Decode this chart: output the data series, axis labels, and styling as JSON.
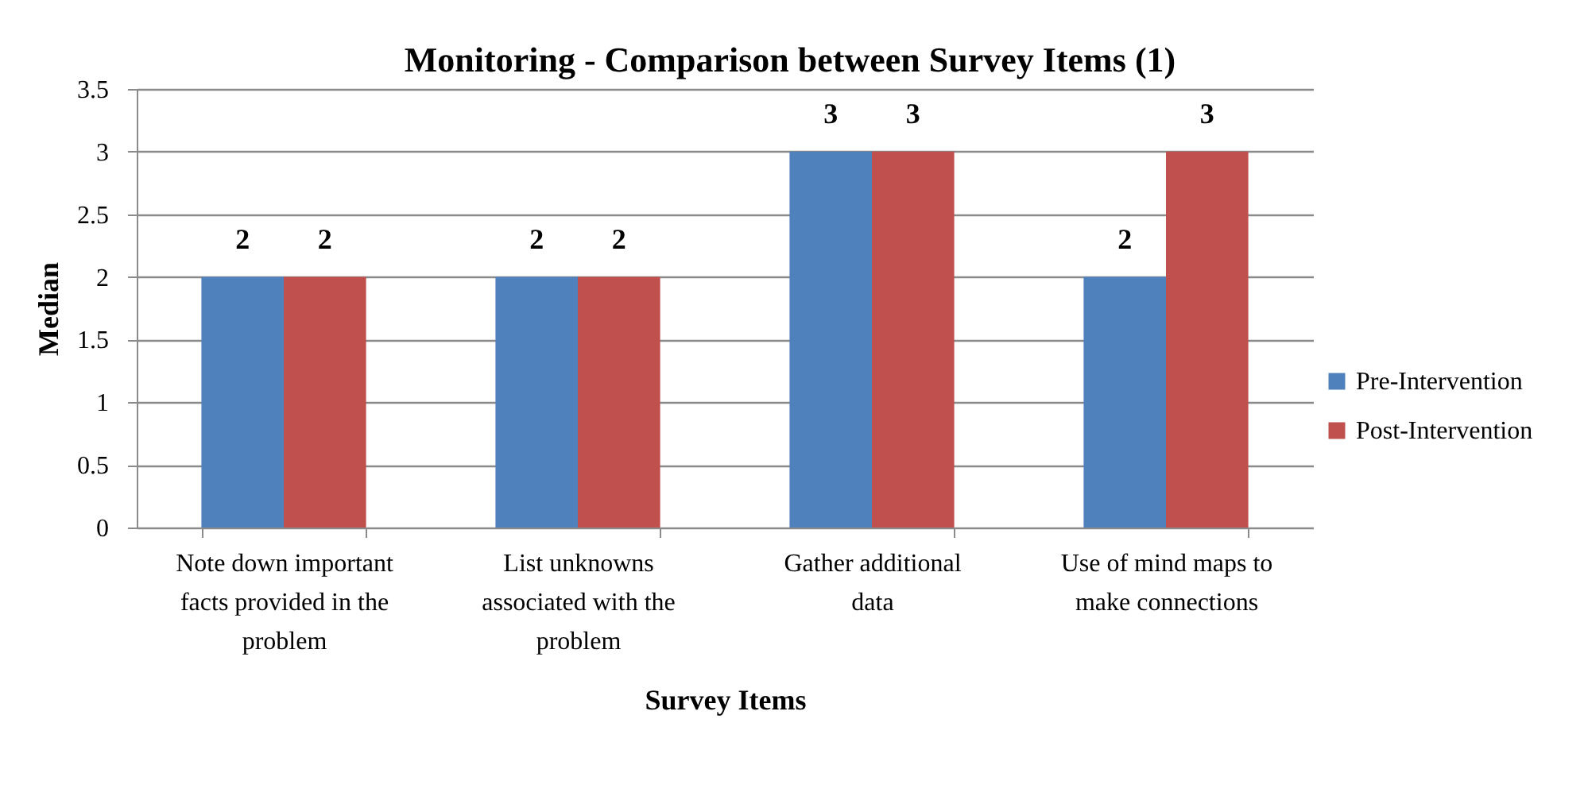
{
  "chart_data": {
    "type": "bar",
    "title": "Monitoring - Comparison between Survey Items (1)",
    "xlabel": "Survey Items",
    "ylabel": "Median",
    "categories": [
      "Note down important facts provided in the problem",
      "List unknowns associated with the problem",
      "Gather additional data",
      "Use of mind maps to make connections"
    ],
    "series": [
      {
        "name": "Pre-Intervention",
        "color": "#4f81bd",
        "values": [
          2,
          2,
          3,
          2
        ]
      },
      {
        "name": "Post-Intervention",
        "color": "#c0504d",
        "values": [
          2,
          2,
          3,
          3
        ]
      }
    ],
    "ylim": [
      0,
      3.5
    ],
    "yticks": [
      0,
      0.5,
      1,
      1.5,
      2,
      2.5,
      3,
      3.5
    ],
    "grid": "y",
    "legend": "right",
    "data_labels": true
  }
}
